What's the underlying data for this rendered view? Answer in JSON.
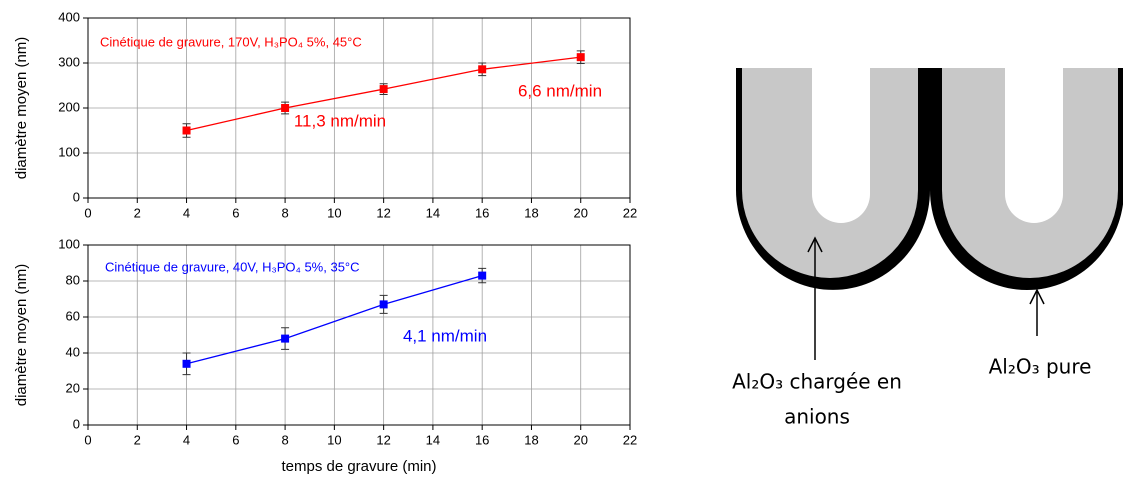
{
  "chart_data": [
    {
      "type": "line",
      "y_label": "diamètre moyen (nm)",
      "annotations": [
        "Cinétique de gravure, 170V, H₃PO₄ 5%, 45°C",
        "11,3 nm/min",
        "6,6 nm/min"
      ],
      "xlim": [
        0,
        22
      ],
      "xticks": [
        0,
        2,
        4,
        6,
        8,
        10,
        12,
        14,
        16,
        18,
        20,
        22
      ],
      "ylim": [
        0,
        400
      ],
      "yticks": [
        0,
        100,
        200,
        300,
        400
      ],
      "grid": true,
      "series": [
        {
          "color": "#ff0000",
          "x": [
            4,
            8,
            12,
            16,
            20
          ],
          "values": [
            150,
            200,
            242,
            286,
            313
          ],
          "errors": [
            15,
            13,
            12,
            14,
            14
          ]
        }
      ]
    },
    {
      "type": "line",
      "y_label": "diamètre moyen (nm)",
      "x_label": "temps de gravure (min)",
      "annotations": [
        "Cinétique de gravure, 40V, H₃PO₄ 5%, 35°C",
        "4,1 nm/min"
      ],
      "xlim": [
        0,
        22
      ],
      "xticks": [
        0,
        2,
        4,
        6,
        8,
        10,
        12,
        14,
        16,
        18,
        20,
        22
      ],
      "ylim": [
        0,
        100
      ],
      "yticks": [
        0,
        20,
        40,
        60,
        80,
        100
      ],
      "grid": true,
      "series": [
        {
          "color": "#0000ff",
          "x": [
            4,
            8,
            12,
            16
          ],
          "values": [
            34,
            48,
            67,
            83
          ],
          "errors": [
            6,
            6,
            5,
            4
          ]
        }
      ]
    }
  ],
  "diagram": {
    "label_left": [
      "Al₂O₃ chargée en",
      "anions"
    ],
    "label_right": "Al₂O₃ pure"
  }
}
